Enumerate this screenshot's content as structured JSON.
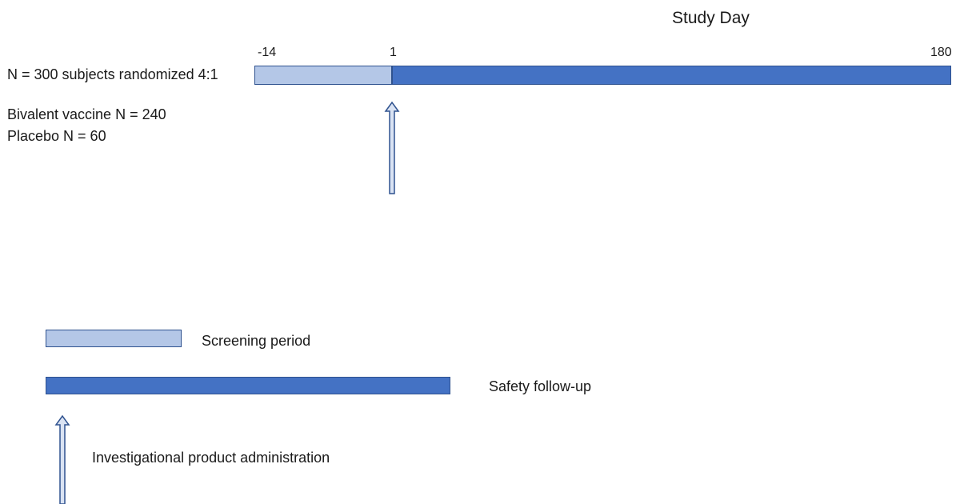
{
  "header": {
    "title": "Study Day"
  },
  "timeline": {
    "ticks": [
      "-14",
      "1",
      "180"
    ],
    "population_label": "N = 300 subjects randomized 4:1",
    "arms": [
      "Bivalent vaccine N = 240",
      "Placebo N = 60"
    ]
  },
  "legend": {
    "screening_label": "Screening period",
    "followup_label": "Safety follow-up",
    "administration_label": "Investigational product administration"
  },
  "colors": {
    "screening_fill": "#b4c7e7",
    "followup_fill": "#4472c4",
    "border": "#2f528f",
    "arrow_fill": "#dae3f3"
  }
}
